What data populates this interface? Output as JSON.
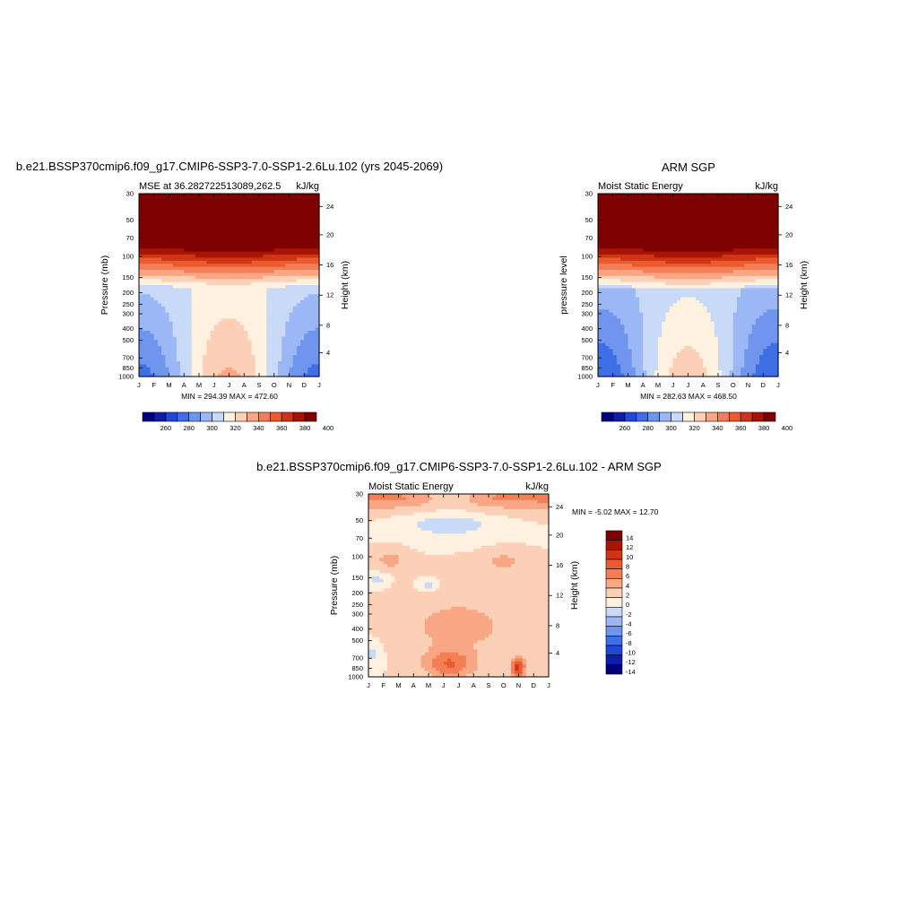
{
  "palette": [
    "#00007f",
    "#0d1fa8",
    "#1f47d8",
    "#3f6fe6",
    "#6f95ef",
    "#9cb7f5",
    "#c8daf7",
    "#fff1e0",
    "#fbd0b6",
    "#f8a683",
    "#f47f57",
    "#ea5b2f",
    "#cf3514",
    "#a81400",
    "#7f0000"
  ],
  "chart_data": [
    {
      "type": "heatmap",
      "title": "b.e21.BSSP370cmip6.f09_g17.CMIP6-SSP3-7.0-SSP1-2.6Lu.102 (yrs 2045-2069)",
      "left_label": "MSE at 36.282722513089,262.5",
      "right_label": "kJ/kg",
      "ylabel": "Pressure (mb)",
      "y2label": "Height (km)",
      "x_ticks": [
        "J",
        "F",
        "M",
        "A",
        "M",
        "J",
        "J",
        "A",
        "S",
        "O",
        "N",
        "D",
        "J"
      ],
      "y_ticks": [
        "30",
        "50",
        "70",
        "100",
        "150",
        "200",
        "250",
        "300",
        "400",
        "500",
        "700",
        "850",
        "1000"
      ],
      "y2_ticks": [
        "24",
        "20",
        "16",
        "12",
        "8",
        "4"
      ],
      "minmax": "MIN = 294.39 MAX = 472.60",
      "colorbar_labels": [
        "260",
        "280",
        "300",
        "320",
        "340",
        "360",
        "380",
        "400"
      ],
      "levels": [
        250,
        260,
        270,
        280,
        290,
        300,
        310,
        320,
        330,
        340,
        350,
        360,
        370,
        380,
        390,
        400
      ]
    },
    {
      "type": "heatmap",
      "title": "ARM SGP",
      "left_label": "Moist Static Energy",
      "right_label": "kJ/kg",
      "ylabel": "pressure level",
      "y2label": "Height (km)",
      "x_ticks": [
        "J",
        "F",
        "M",
        "A",
        "M",
        "J",
        "J",
        "A",
        "S",
        "O",
        "N",
        "D",
        "J"
      ],
      "y_ticks": [
        "30",
        "50",
        "70",
        "100",
        "150",
        "200",
        "250",
        "300",
        "400",
        "500",
        "700",
        "850",
        "1000"
      ],
      "y2_ticks": [
        "24",
        "20",
        "16",
        "12",
        "8",
        "4"
      ],
      "minmax": "MIN = 282.63 MAX = 468.50",
      "colorbar_labels": [
        "260",
        "280",
        "300",
        "320",
        "340",
        "360",
        "380",
        "400"
      ],
      "levels": [
        250,
        260,
        270,
        280,
        290,
        300,
        310,
        320,
        330,
        340,
        350,
        360,
        370,
        380,
        390,
        400
      ]
    },
    {
      "type": "heatmap",
      "title": "b.e21.BSSP370cmip6.f09_g17.CMIP6-SSP3-7.0-SSP1-2.6Lu.102 - ARM SGP",
      "left_label": "Moist Static Energy",
      "right_label": "kJ/kg",
      "ylabel": "Pressure (mb)",
      "y2label": "Height (km)",
      "x_ticks": [
        "J",
        "F",
        "M",
        "A",
        "M",
        "J",
        "J",
        "A",
        "S",
        "O",
        "N",
        "D",
        "J"
      ],
      "y_ticks": [
        "30",
        "50",
        "70",
        "100",
        "150",
        "200",
        "250",
        "300",
        "400",
        "500",
        "700",
        "850",
        "1000"
      ],
      "y2_ticks": [
        "24",
        "20",
        "16",
        "12",
        "8",
        "4"
      ],
      "minmax": "MIN =  -5.02 MAX =  12.70",
      "colorbar_labels": [
        "14",
        "12",
        "10",
        "8",
        "6",
        "4",
        "2",
        "0",
        "-2",
        "-4",
        "-6",
        "-8",
        "-10",
        "-12",
        "-14"
      ],
      "levels": [
        -14,
        -12,
        -10,
        -8,
        -6,
        -4,
        -2,
        0,
        2,
        4,
        6,
        8,
        10,
        12,
        14
      ]
    }
  ]
}
